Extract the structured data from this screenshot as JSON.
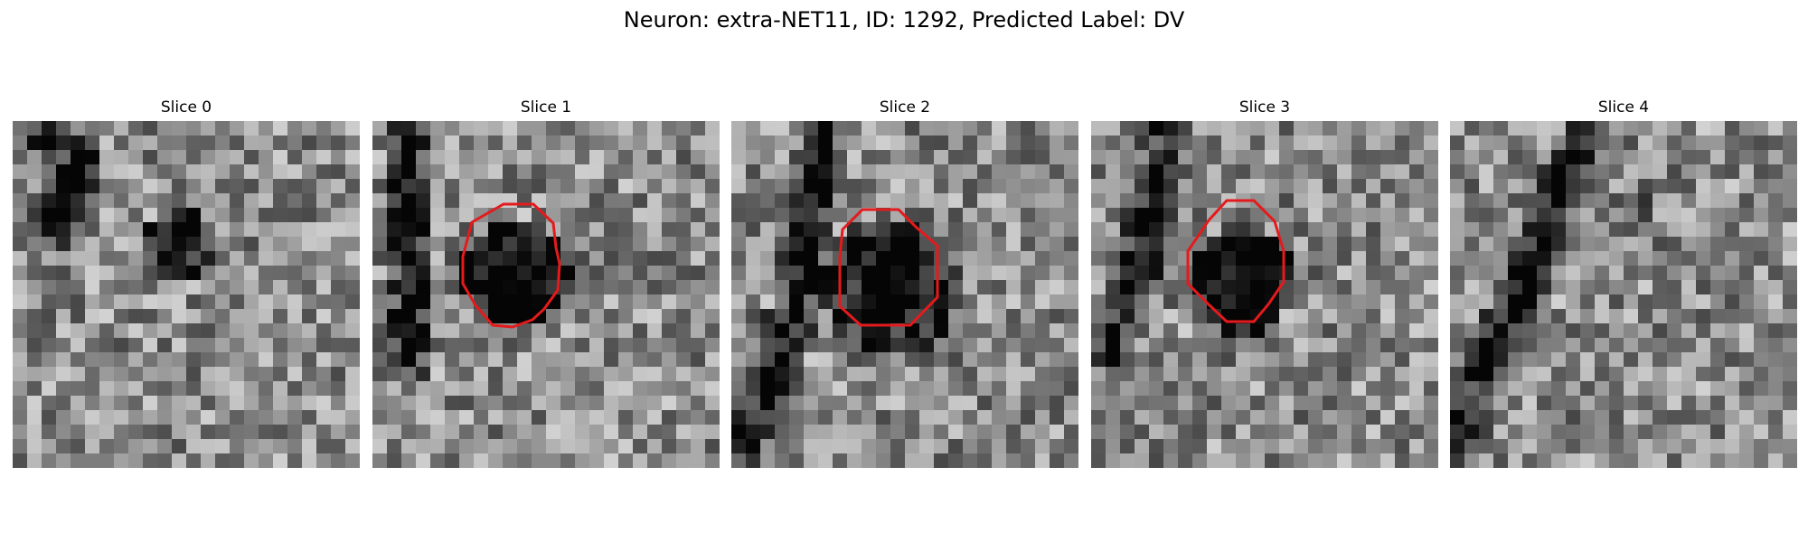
{
  "figure": {
    "title": "Neuron: extra-NET11, ID: 1292, Predicted Label: DV",
    "contour_color": "#e41a1c",
    "slices": [
      {
        "label": "Slice 0",
        "has_contour": false
      },
      {
        "label": "Slice 1",
        "has_contour": true
      },
      {
        "label": "Slice 2",
        "has_contour": true
      },
      {
        "label": "Slice 3",
        "has_contour": true
      },
      {
        "label": "Slice 4",
        "has_contour": false
      }
    ]
  }
}
